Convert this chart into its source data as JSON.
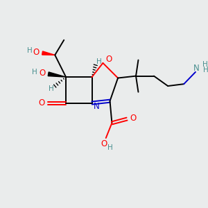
{
  "bg_color": "#eaecec",
  "atom_colors": {
    "C": "#000000",
    "N": "#0000cc",
    "O": "#ff0000",
    "H": "#4a8f8f"
  },
  "fs": 8.5,
  "fsh": 7.5,
  "lw": 1.4
}
